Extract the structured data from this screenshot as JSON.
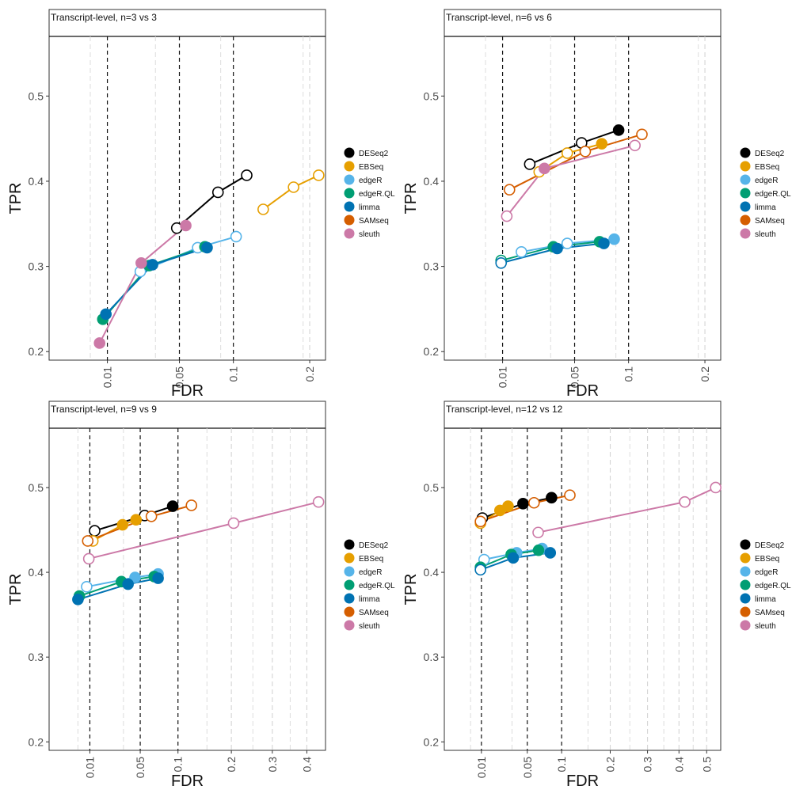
{
  "colors": {
    "DESeq2": "#000000",
    "EBSeq": "#E69F00",
    "edgeR": "#56B4E9",
    "edgeR.QL": "#009E73",
    "limma": "#0072B2",
    "SAMseq": "#D55E00",
    "sleuth": "#CC79A7"
  },
  "chart_data": [
    {
      "type": "line",
      "title": "Transcript-level, n=3 vs 3",
      "xlabel": "FDR",
      "ylabel": "TPR",
      "x_scale": "sqrt",
      "xlim": [
        0,
        0.225
      ],
      "ylim": [
        0.19,
        0.57
      ],
      "x_ticks": [
        0.01,
        0.05,
        0.1,
        0.2
      ],
      "x_tick_labels": [
        "0.01",
        "0.05",
        "0.1",
        "0.2"
      ],
      "y_ticks": [
        0.2,
        0.3,
        0.4,
        0.5
      ],
      "y_tick_labels": [
        "0.2",
        "0.3",
        "0.4",
        "0.5"
      ],
      "ref_lines": [
        0.01,
        0.05,
        0.1
      ],
      "grid_minor_x": [
        0.005,
        0.0333,
        0.0867,
        0.19
      ],
      "legend": {
        "position": "right",
        "entries": [
          "DESeq2",
          "EBSeq",
          "edgeR",
          "edgeR.QL",
          "limma",
          "SAMseq",
          "sleuth"
        ]
      },
      "series": [
        {
          "name": "DESeq2",
          "points": [
            {
              "x": 0.048,
              "y": 0.345,
              "filled": false
            },
            {
              "x": 0.084,
              "y": 0.387,
              "filled": false
            },
            {
              "x": 0.115,
              "y": 0.407,
              "filled": false
            }
          ]
        },
        {
          "name": "EBSeq",
          "points": [
            {
              "x": 0.135,
              "y": 0.367,
              "filled": false
            },
            {
              "x": 0.176,
              "y": 0.393,
              "filled": false
            },
            {
              "x": 0.214,
              "y": 0.407,
              "filled": false
            }
          ]
        },
        {
          "name": "edgeR",
          "points": [
            {
              "x": 0.0245,
              "y": 0.294,
              "filled": false
            },
            {
              "x": 0.065,
              "y": 0.322,
              "filled": false
            },
            {
              "x": 0.103,
              "y": 0.335,
              "filled": false
            }
          ]
        },
        {
          "name": "edgeR.QL",
          "points": [
            {
              "x": 0.0085,
              "y": 0.238,
              "filled": true
            },
            {
              "x": 0.0295,
              "y": 0.301,
              "filled": true
            },
            {
              "x": 0.0715,
              "y": 0.323,
              "filled": true
            }
          ]
        },
        {
          "name": "limma",
          "points": [
            {
              "x": 0.0095,
              "y": 0.244,
              "filled": true
            },
            {
              "x": 0.0315,
              "y": 0.302,
              "filled": true
            },
            {
              "x": 0.0735,
              "y": 0.322,
              "filled": true
            }
          ]
        },
        {
          "name": "sleuth",
          "points": [
            {
              "x": 0.0075,
              "y": 0.21,
              "filled": true
            },
            {
              "x": 0.025,
              "y": 0.304,
              "filled": true
            },
            {
              "x": 0.055,
              "y": 0.348,
              "filled": true
            }
          ]
        }
      ]
    },
    {
      "type": "line",
      "title": "Transcript-level, n=6 vs 6",
      "xlabel": "FDR",
      "ylabel": "TPR",
      "x_scale": "sqrt",
      "xlim": [
        0,
        0.225
      ],
      "ylim": [
        0.19,
        0.57
      ],
      "x_ticks": [
        0.01,
        0.05,
        0.1,
        0.2
      ],
      "x_tick_labels": [
        "0.01",
        "0.05",
        "0.1",
        "0.2"
      ],
      "y_ticks": [
        0.2,
        0.3,
        0.4,
        0.5
      ],
      "y_tick_labels": [
        "0.2",
        "0.3",
        "0.4",
        "0.5"
      ],
      "ref_lines": [
        0.01,
        0.05,
        0.1
      ],
      "grid_minor_x": [
        0.005,
        0.0333,
        0.0867,
        0.19
      ],
      "legend": {
        "position": "right",
        "entries": [
          "DESeq2",
          "EBSeq",
          "edgeR",
          "edgeR.QL",
          "limma",
          "SAMseq",
          "sleuth"
        ]
      },
      "series": [
        {
          "name": "DESeq2",
          "points": [
            {
              "x": 0.0215,
              "y": 0.42,
              "filled": false
            },
            {
              "x": 0.0555,
              "y": 0.445,
              "filled": false
            },
            {
              "x": 0.0895,
              "y": 0.46,
              "filled": true
            }
          ]
        },
        {
          "name": "EBSeq",
          "points": [
            {
              "x": 0.0265,
              "y": 0.411,
              "filled": false
            },
            {
              "x": 0.0445,
              "y": 0.433,
              "filled": false
            },
            {
              "x": 0.073,
              "y": 0.444,
              "filled": true
            }
          ]
        },
        {
          "name": "edgeR",
          "points": [
            {
              "x": 0.0175,
              "y": 0.317,
              "filled": false
            },
            {
              "x": 0.0445,
              "y": 0.327,
              "filled": false
            },
            {
              "x": 0.085,
              "y": 0.332,
              "filled": true
            }
          ]
        },
        {
          "name": "edgeR.QL",
          "points": [
            {
              "x": 0.0095,
              "y": 0.307,
              "filled": false
            },
            {
              "x": 0.035,
              "y": 0.323,
              "filled": true
            },
            {
              "x": 0.071,
              "y": 0.329,
              "filled": true
            }
          ]
        },
        {
          "name": "limma",
          "points": [
            {
              "x": 0.0095,
              "y": 0.304,
              "filled": false
            },
            {
              "x": 0.0375,
              "y": 0.321,
              "filled": true
            },
            {
              "x": 0.075,
              "y": 0.327,
              "filled": true
            }
          ]
        },
        {
          "name": "SAMseq",
          "points": [
            {
              "x": 0.0125,
              "y": 0.39,
              "filled": false
            },
            {
              "x": 0.0585,
              "y": 0.435,
              "filled": false
            },
            {
              "x": 0.115,
              "y": 0.455,
              "filled": false
            }
          ]
        },
        {
          "name": "sleuth",
          "points": [
            {
              "x": 0.0115,
              "y": 0.359,
              "filled": false
            },
            {
              "x": 0.0295,
              "y": 0.415,
              "filled": true
            },
            {
              "x": 0.107,
              "y": 0.442,
              "filled": false
            }
          ]
        }
      ]
    },
    {
      "type": "line",
      "title": "Transcript-level, n=9 vs 9",
      "xlabel": "FDR",
      "ylabel": "TPR",
      "x_scale": "sqrt",
      "xlim": [
        0,
        0.46
      ],
      "ylim": [
        0.19,
        0.57
      ],
      "x_ticks": [
        0.01,
        0.05,
        0.1,
        0.2,
        0.3,
        0.4
      ],
      "x_tick_labels": [
        "0.01",
        "0.05",
        "0.1",
        "0.2",
        "0.3",
        "0.4"
      ],
      "y_ticks": [
        0.2,
        0.3,
        0.4,
        0.5
      ],
      "y_tick_labels": [
        "0.2",
        "0.3",
        "0.4",
        "0.5"
      ],
      "ref_lines": [
        0.01,
        0.05,
        0.1
      ],
      "grid_minor_x": [
        0.005,
        0.0333,
        0.15,
        0.25,
        0.35
      ],
      "legend": {
        "position": "right",
        "entries": [
          "DESeq2",
          "EBSeq",
          "edgeR",
          "edgeR.QL",
          "limma",
          "SAMseq",
          "sleuth"
        ]
      },
      "series": [
        {
          "name": "DESeq2",
          "points": [
            {
              "x": 0.0125,
              "y": 0.449,
              "filled": false
            },
            {
              "x": 0.055,
              "y": 0.467,
              "filled": false
            },
            {
              "x": 0.092,
              "y": 0.478,
              "filled": true
            }
          ]
        },
        {
          "name": "EBSeq",
          "points": [
            {
              "x": 0.0115,
              "y": 0.437,
              "filled": false
            },
            {
              "x": 0.0325,
              "y": 0.456,
              "filled": true
            },
            {
              "x": 0.0455,
              "y": 0.462,
              "filled": true
            }
          ]
        },
        {
          "name": "edgeR",
          "points": [
            {
              "x": 0.0085,
              "y": 0.383,
              "filled": false
            },
            {
              "x": 0.0445,
              "y": 0.394,
              "filled": true
            },
            {
              "x": 0.0715,
              "y": 0.398,
              "filled": true
            }
          ]
        },
        {
          "name": "edgeR.QL",
          "points": [
            {
              "x": 0.0055,
              "y": 0.372,
              "filled": true
            },
            {
              "x": 0.0315,
              "y": 0.389,
              "filled": true
            },
            {
              "x": 0.0665,
              "y": 0.395,
              "filled": true
            }
          ]
        },
        {
          "name": "limma",
          "points": [
            {
              "x": 0.005,
              "y": 0.368,
              "filled": true
            },
            {
              "x": 0.0375,
              "y": 0.386,
              "filled": true
            },
            {
              "x": 0.0715,
              "y": 0.393,
              "filled": true
            }
          ]
        },
        {
          "name": "SAMseq",
          "points": [
            {
              "x": 0.009,
              "y": 0.437,
              "filled": false
            },
            {
              "x": 0.063,
              "y": 0.466,
              "filled": false
            },
            {
              "x": 0.122,
              "y": 0.479,
              "filled": false
            }
          ]
        },
        {
          "name": "sleuth",
          "points": [
            {
              "x": 0.0095,
              "y": 0.416,
              "filled": false
            },
            {
              "x": 0.205,
              "y": 0.458,
              "filled": false
            },
            {
              "x": 0.437,
              "y": 0.483,
              "filled": false
            }
          ]
        }
      ]
    },
    {
      "type": "line",
      "title": "Transcript-level, n=12 vs 12",
      "xlabel": "FDR",
      "ylabel": "TPR",
      "x_scale": "sqrt",
      "xlim": [
        0,
        0.555
      ],
      "ylim": [
        0.19,
        0.57
      ],
      "x_ticks": [
        0.01,
        0.05,
        0.1,
        0.2,
        0.3,
        0.4,
        0.5
      ],
      "x_tick_labels": [
        "0.01",
        "0.05",
        "0.1",
        "0.2",
        "0.3",
        "0.4",
        "0.5"
      ],
      "y_ticks": [
        0.2,
        0.3,
        0.4,
        0.5
      ],
      "y_tick_labels": [
        "0.2",
        "0.3",
        "0.4",
        "0.5"
      ],
      "ref_lines": [
        0.01,
        0.05,
        0.1
      ],
      "grid_minor_x": [
        0.005,
        0.0333,
        0.15,
        0.25,
        0.35,
        0.45
      ],
      "legend": {
        "position": "right",
        "entries": [
          "DESeq2",
          "EBSeq",
          "edgeR",
          "edgeR.QL",
          "limma",
          "SAMseq",
          "sleuth"
        ]
      },
      "series": [
        {
          "name": "DESeq2",
          "points": [
            {
              "x": 0.0105,
              "y": 0.464,
              "filled": false
            },
            {
              "x": 0.045,
              "y": 0.481,
              "filled": true
            },
            {
              "x": 0.0835,
              "y": 0.488,
              "filled": true
            }
          ]
        },
        {
          "name": "EBSeq",
          "points": [
            {
              "x": 0.0095,
              "y": 0.458,
              "filled": false
            },
            {
              "x": 0.0225,
              "y": 0.473,
              "filled": true
            },
            {
              "x": 0.0295,
              "y": 0.478,
              "filled": true
            }
          ]
        },
        {
          "name": "edgeR",
          "points": [
            {
              "x": 0.0115,
              "y": 0.415,
              "filled": false
            },
            {
              "x": 0.038,
              "y": 0.423,
              "filled": true
            },
            {
              "x": 0.0695,
              "y": 0.428,
              "filled": true
            }
          ]
        },
        {
          "name": "edgeR.QL",
          "points": [
            {
              "x": 0.0095,
              "y": 0.406,
              "filled": true
            },
            {
              "x": 0.0325,
              "y": 0.421,
              "filled": true
            },
            {
              "x": 0.0645,
              "y": 0.426,
              "filled": true
            }
          ]
        },
        {
          "name": "limma",
          "points": [
            {
              "x": 0.0095,
              "y": 0.403,
              "filled": false
            },
            {
              "x": 0.0345,
              "y": 0.417,
              "filled": true
            },
            {
              "x": 0.0815,
              "y": 0.423,
              "filled": true
            }
          ]
        },
        {
          "name": "SAMseq",
          "points": [
            {
              "x": 0.0095,
              "y": 0.46,
              "filled": false
            },
            {
              "x": 0.0585,
              "y": 0.482,
              "filled": false
            },
            {
              "x": 0.1145,
              "y": 0.491,
              "filled": false
            }
          ]
        },
        {
          "name": "sleuth",
          "points": [
            {
              "x": 0.064,
              "y": 0.447,
              "filled": false
            },
            {
              "x": 0.42,
              "y": 0.483,
              "filled": false
            },
            {
              "x": 0.535,
              "y": 0.5,
              "filled": false
            }
          ]
        }
      ]
    }
  ]
}
